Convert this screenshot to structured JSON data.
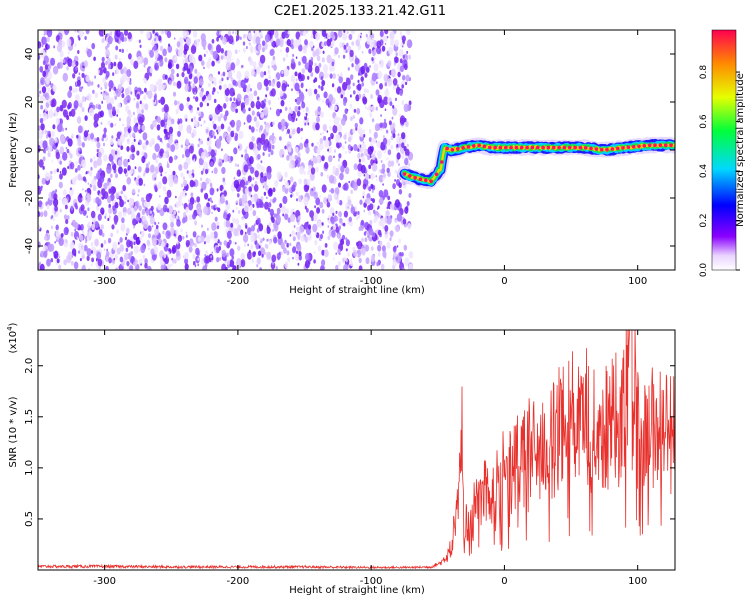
{
  "title": "C2E1.2025.133.21.42.G11",
  "colors": {
    "trace": "#e8302c",
    "scatter": "#7a2cf0",
    "axis": "#000000"
  },
  "chart_data": [
    {
      "type": "heatmap",
      "xlabel": "Height of straight line (km)",
      "ylabel": "Frequency (Hz)",
      "xlim": [
        -350,
        128
      ],
      "ylim": [
        -50,
        50
      ],
      "xticks": [
        -300,
        -200,
        -100,
        0,
        100
      ],
      "yticks": [
        -40,
        -20,
        0,
        20,
        40
      ],
      "colorbar": {
        "label": "Normalized spectral amplitude",
        "range": [
          0.0,
          0.97
        ],
        "ticks": [
          "0.0",
          "0.2",
          "0.4",
          "0.6",
          "0.8"
        ],
        "colormap": [
          "#f2e6ff",
          "#7f00ff",
          "#0000ff",
          "#00e0ff",
          "#00ff40",
          "#ffff00",
          "#ff8000",
          "#ff0050"
        ]
      },
      "noise_region_x": [
        -350,
        -70
      ],
      "ridge": [
        {
          "x": -75,
          "y": -10
        },
        {
          "x": -65,
          "y": -12
        },
        {
          "x": -55,
          "y": -13
        },
        {
          "x": -48,
          "y": -8
        },
        {
          "x": -45,
          "y": 1
        },
        {
          "x": -40,
          "y": 0
        },
        {
          "x": -30,
          "y": 1
        },
        {
          "x": -20,
          "y": 2
        },
        {
          "x": -10,
          "y": 1
        },
        {
          "x": 0,
          "y": 1
        },
        {
          "x": 20,
          "y": 1
        },
        {
          "x": 40,
          "y": 1
        },
        {
          "x": 60,
          "y": 1
        },
        {
          "x": 75,
          "y": 0
        },
        {
          "x": 90,
          "y": 1
        },
        {
          "x": 110,
          "y": 2
        },
        {
          "x": 128,
          "y": 2
        }
      ]
    },
    {
      "type": "line",
      "xlabel": "Height of straight line (km)",
      "ylabel": "SNR (10 * v/v)",
      "yexponent": "(x10",
      "yexponent_power": "4",
      "yexponent_close": ")",
      "xlim": [
        -350,
        128
      ],
      "ylim": [
        0,
        23500
      ],
      "xticks": [
        -300,
        -200,
        -100,
        0,
        100
      ],
      "yticks": [
        5000,
        10000,
        15000,
        20000
      ],
      "ytick_labels": [
        "0.5",
        "1.0",
        "1.5",
        "2.0"
      ],
      "series": [
        {
          "x": [
            -350,
            -300,
            -250,
            -200,
            -150,
            -100,
            -70,
            -55,
            -48,
            -42,
            -38,
            -34,
            -32,
            -30,
            -28,
            -25,
            -20,
            -15,
            -10,
            -5,
            0,
            10,
            20,
            30,
            40,
            50,
            60,
            70,
            80,
            90,
            95,
            100,
            110,
            120,
            128
          ],
          "y": [
            350,
            350,
            300,
            300,
            300,
            250,
            250,
            300,
            700,
            1500,
            3500,
            7000,
            14000,
            5000,
            4500,
            5500,
            6500,
            8000,
            7500,
            8000,
            9000,
            10500,
            11500,
            12000,
            13000,
            13500,
            14000,
            13500,
            14000,
            14500,
            23500,
            13000,
            14000,
            14000,
            13500
          ]
        }
      ]
    }
  ]
}
